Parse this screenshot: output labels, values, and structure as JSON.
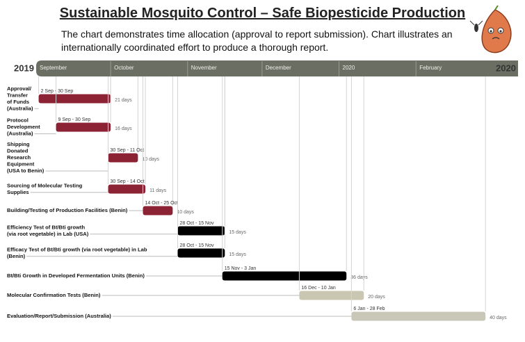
{
  "chart_data": {
    "type": "gantt",
    "title": "Sustainable Mosquito Control – Safe Biopesticide Production",
    "description": "The chart demonstrates time allocation (approval to report submission). Chart illustrates an internationally coordinated effort to produce a thorough report.",
    "start_year": "2019",
    "end_year": "2020",
    "months": [
      "September",
      "October",
      "November",
      "December",
      "2020",
      "February"
    ],
    "tasks": [
      {
        "label": [
          "Approval/",
          "Transfer",
          "of Funds",
          "(Australia)"
        ],
        "dates": "2 Sep - 30 Sep",
        "duration": "21 days",
        "color": "#8b2335"
      },
      {
        "label": [
          "Protocol",
          "Development",
          "(Australia)"
        ],
        "dates": "9 Sep - 30 Sep",
        "duration": "16 days",
        "color": "#8b2335"
      },
      {
        "label": [
          "Shipping",
          "Donated",
          "Research",
          "Equipment",
          "(USA to Benin)"
        ],
        "dates": "30 Sep - 11 Oct",
        "duration": "10 days",
        "color": "#8b2335"
      },
      {
        "label": [
          "Sourcing of Molecular Testing",
          "Supplies"
        ],
        "dates": "30 Sep - 14 Oct",
        "duration": "11 days",
        "color": "#8b2335"
      },
      {
        "label": [
          "Building/Testing of Production Facilities (Benin)"
        ],
        "dates": "14 Oct - 25 Oct",
        "duration": "10 days",
        "color": "#8b2335"
      },
      {
        "label": [
          "Efficiency Test of Bt/Bti growth",
          "(via root vegetable) in Lab (USA)"
        ],
        "dates": "28 Oct - 15 Nov",
        "duration": "15 days",
        "color": "#000000"
      },
      {
        "label": [
          "Efficacy Test of Bt/Bti growth (via root vegetable) in Lab",
          "(Benin)"
        ],
        "dates": "28 Oct - 15 Nov",
        "duration": "15 days",
        "color": "#000000"
      },
      {
        "label": [
          "Bt/Bti Growth in Developed Fermentation Units (Benin)"
        ],
        "dates": "15 Nov - 3 Jan",
        "duration": "36 days",
        "color": "#000000"
      },
      {
        "label": [
          "Molecular Confirmation Tests (Benin)"
        ],
        "dates": "16 Dec - 10 Jan",
        "duration": "20 days",
        "color": "#c9c7b1"
      },
      {
        "label": [
          "Evaluation/Report/Submission (Australia)"
        ],
        "dates": "6 Jan - 28 Feb",
        "duration": "40 days",
        "color": "#c9c8b8"
      }
    ]
  }
}
